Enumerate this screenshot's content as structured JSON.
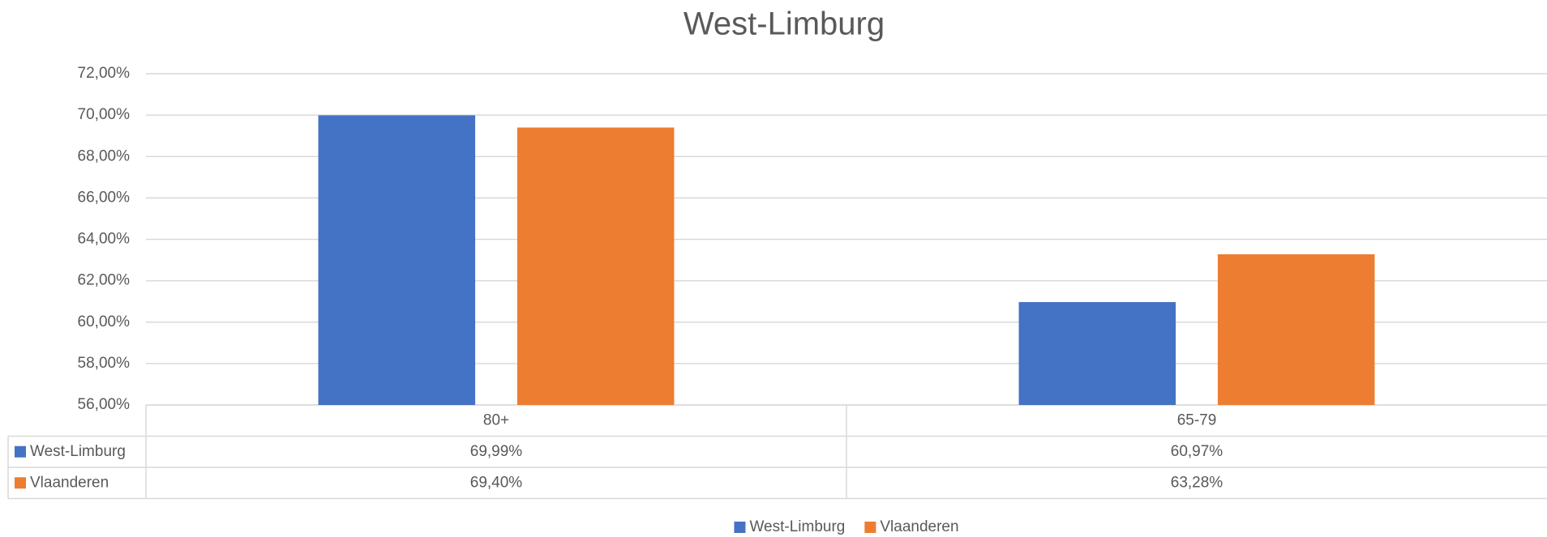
{
  "chart_data": {
    "type": "bar",
    "title": "West-Limburg",
    "categories": [
      "80+",
      "65-79"
    ],
    "series": [
      {
        "name": "West-Limburg",
        "color": "#4472c4",
        "values": [
          69.99,
          60.97
        ],
        "value_labels": [
          "69,99%",
          "60,97%"
        ]
      },
      {
        "name": "Vlaanderen",
        "color": "#ed7d31",
        "values": [
          69.4,
          63.28
        ],
        "value_labels": [
          "69,40%",
          "63,28%"
        ]
      }
    ],
    "ylim": [
      56,
      72
    ],
    "yticks": [
      {
        "value": 56,
        "label": "56,00%"
      },
      {
        "value": 58,
        "label": "58,00%"
      },
      {
        "value": 60,
        "label": "60,00%"
      },
      {
        "value": 62,
        "label": "62,00%"
      },
      {
        "value": 64,
        "label": "64,00%"
      },
      {
        "value": 66,
        "label": "66,00%"
      },
      {
        "value": 68,
        "label": "68,00%"
      },
      {
        "value": 70,
        "label": "70,00%"
      },
      {
        "value": 72,
        "label": "72,00%"
      }
    ],
    "grid": true,
    "legend": "bottom"
  }
}
